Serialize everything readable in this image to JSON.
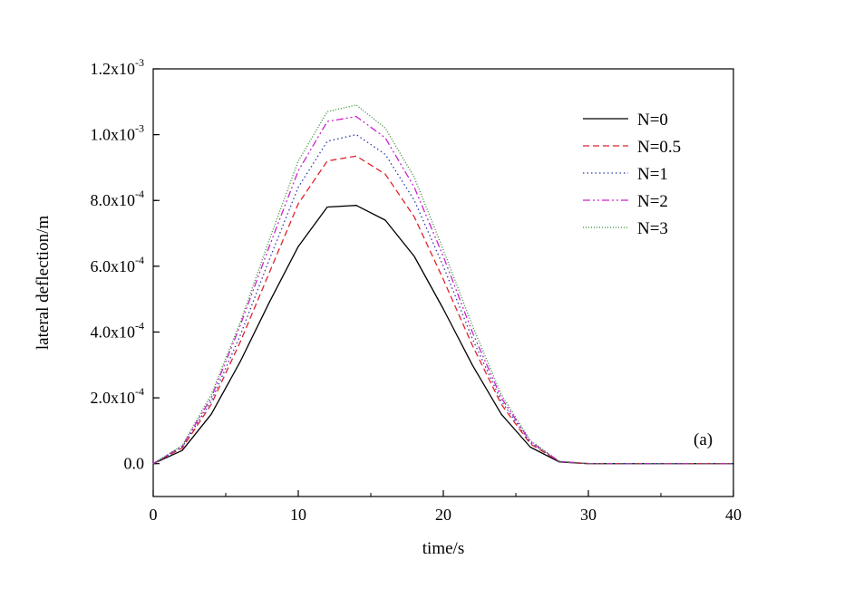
{
  "chart_data": {
    "type": "line",
    "title": "",
    "xlabel": "time/s",
    "ylabel": "lateral deflection/m",
    "xlim": [
      0,
      40
    ],
    "ylim": [
      -0.0001,
      0.0012
    ],
    "x_ticks": [
      0,
      10,
      20,
      30,
      40
    ],
    "x_tick_labels": [
      "0",
      "10",
      "20",
      "30",
      "40"
    ],
    "y_ticks": [
      0,
      0.0002,
      0.0004,
      0.0006,
      0.0008,
      0.001,
      0.0012
    ],
    "y_tick_labels": [
      {
        "mantissa": "0.0",
        "exponent": ""
      },
      {
        "mantissa": "2.0x10",
        "exponent": "-4"
      },
      {
        "mantissa": "4.0x10",
        "exponent": "-4"
      },
      {
        "mantissa": "6.0x10",
        "exponent": "-4"
      },
      {
        "mantissa": "8.0x10",
        "exponent": "-4"
      },
      {
        "mantissa": "1.0x10",
        "exponent": "-3"
      },
      {
        "mantissa": "1.2x10",
        "exponent": "-3"
      }
    ],
    "annotation": "(a)",
    "grid": false,
    "legend_position": "top-right",
    "series": [
      {
        "name": "N=0",
        "color": "#000000",
        "dash": "solid",
        "x": [
          0,
          2,
          4,
          6,
          8,
          10,
          12,
          14,
          16,
          18,
          20,
          22,
          24,
          26,
          28,
          30,
          32,
          34,
          36,
          38,
          40
        ],
        "y": [
          0,
          4e-05,
          0.00015,
          0.00031,
          0.00049,
          0.00066,
          0.00078,
          0.000785,
          0.00074,
          0.00063,
          0.00047,
          0.0003,
          0.00015,
          5e-05,
          5e-06,
          0,
          0,
          0,
          0,
          0,
          0
        ]
      },
      {
        "name": "N=0.5",
        "color": "#e0232c",
        "dash": "dashed",
        "x": [
          0,
          2,
          4,
          6,
          8,
          10,
          12,
          14,
          16,
          18,
          20,
          22,
          24,
          26,
          28,
          30,
          32,
          34,
          36,
          38,
          40
        ],
        "y": [
          0,
          4.7e-05,
          0.00018,
          0.00037,
          0.00058,
          0.00079,
          0.00092,
          0.000935,
          0.00088,
          0.00075,
          0.00056,
          0.00036,
          0.00018,
          6e-05,
          6e-06,
          0,
          0,
          0,
          0,
          0,
          0
        ]
      },
      {
        "name": "N=1",
        "color": "#2b3aa8",
        "dash": "dotted",
        "x": [
          0,
          2,
          4,
          6,
          8,
          10,
          12,
          14,
          16,
          18,
          20,
          22,
          24,
          26,
          28,
          30,
          32,
          34,
          36,
          38,
          40
        ],
        "y": [
          0,
          5e-05,
          0.00019,
          0.00039,
          0.00062,
          0.00084,
          0.00098,
          0.001,
          0.00094,
          0.0008,
          0.0006,
          0.00038,
          0.00019,
          6.4e-05,
          6e-06,
          0,
          0,
          0,
          0,
          0,
          0
        ]
      },
      {
        "name": "N=2",
        "color": "#cc22cc",
        "dash": "dashdotdot",
        "x": [
          0,
          2,
          4,
          6,
          8,
          10,
          12,
          14,
          16,
          18,
          20,
          22,
          24,
          26,
          28,
          30,
          32,
          34,
          36,
          38,
          40
        ],
        "y": [
          0,
          5.3e-05,
          0.0002,
          0.00042,
          0.00066,
          0.00089,
          0.00104,
          0.001055,
          0.00099,
          0.00084,
          0.00063,
          0.0004,
          0.0002,
          6.7e-05,
          7e-06,
          0,
          0,
          0,
          0,
          0,
          0
        ]
      },
      {
        "name": "N=3",
        "color": "#2a8a2a",
        "dash": "finedot",
        "x": [
          0,
          2,
          4,
          6,
          8,
          10,
          12,
          14,
          16,
          18,
          20,
          22,
          24,
          26,
          28,
          30,
          32,
          34,
          36,
          38,
          40
        ],
        "y": [
          0,
          5.5e-05,
          0.00021,
          0.00043,
          0.00068,
          0.00092,
          0.00107,
          0.00109,
          0.00102,
          0.00087,
          0.00065,
          0.00042,
          0.00021,
          7e-05,
          7e-06,
          0,
          0,
          0,
          0,
          0,
          0
        ]
      }
    ]
  }
}
